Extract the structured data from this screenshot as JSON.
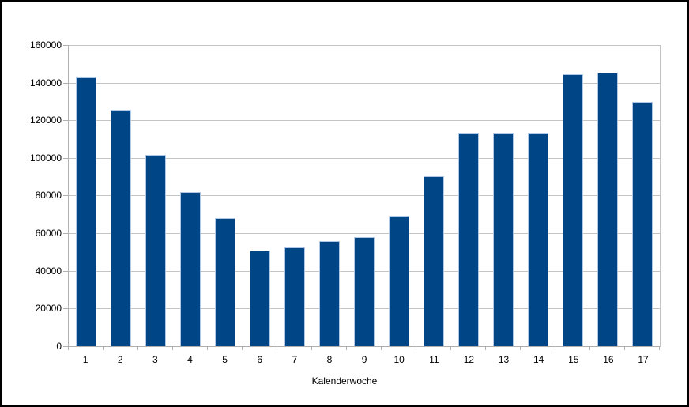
{
  "chart_data": {
    "type": "bar",
    "title": "",
    "xlabel": "Kalenderwoche",
    "ylabel": "",
    "categories": [
      "1",
      "2",
      "3",
      "4",
      "5",
      "6",
      "7",
      "8",
      "9",
      "10",
      "11",
      "12",
      "13",
      "14",
      "15",
      "16",
      "17"
    ],
    "values": [
      142500,
      125000,
      101000,
      81500,
      67500,
      50500,
      52000,
      55500,
      57500,
      69000,
      90000,
      113000,
      113000,
      113000,
      144000,
      145000,
      129500
    ],
    "ylim": [
      0,
      160000
    ],
    "ytick_step": 20000,
    "ytick_labels": [
      "0",
      "20000",
      "40000",
      "60000",
      "80000",
      "100000",
      "120000",
      "140000",
      "160000"
    ],
    "grid": true,
    "legend": "none"
  },
  "colors": {
    "bar_fill": "#004586",
    "bar_border": "#b2c7e4",
    "gridline": "#c4c4c4",
    "axis": "#b0b0b0",
    "text": "#000000",
    "background": "#ffffff",
    "frame_border": "#000000"
  }
}
